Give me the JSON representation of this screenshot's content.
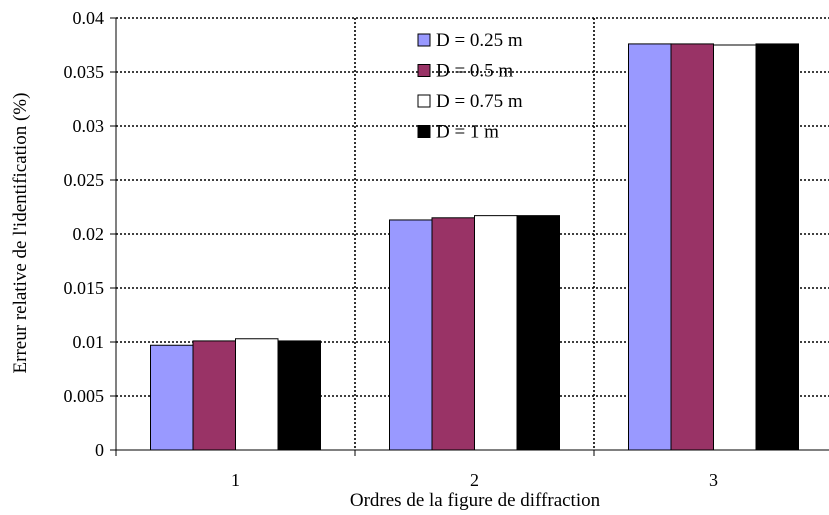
{
  "chart_data": {
    "type": "bar",
    "title": "",
    "xlabel": "Ordres de la figure de diffraction",
    "ylabel": "Erreur relative de l'identification (%)",
    "categories": [
      "1",
      "2",
      "3"
    ],
    "ylim": [
      0,
      0.04
    ],
    "yticks": [
      "0",
      "0.005",
      "0.01",
      "0.015",
      "0.02",
      "0.025",
      "0.03",
      "0.035",
      "0.04"
    ],
    "ytick_values": [
      0,
      0.005,
      0.01,
      0.015,
      0.02,
      0.025,
      0.03,
      0.035,
      0.04
    ],
    "grid": "dotted",
    "legend_position": "top-center",
    "series": [
      {
        "name": "D = 0.25 m",
        "color": "#9999ff",
        "values": [
          0.0097,
          0.0213,
          0.0376
        ]
      },
      {
        "name": "D = 0.5 m",
        "color": "#993366",
        "values": [
          0.0101,
          0.0215,
          0.0376
        ]
      },
      {
        "name": "D = 0.75 m",
        "color": "#ffffff",
        "values": [
          0.0103,
          0.0217,
          0.0375
        ]
      },
      {
        "name": "D = 1 m",
        "color": "#000000",
        "values": [
          0.0101,
          0.0217,
          0.0376
        ]
      }
    ]
  }
}
